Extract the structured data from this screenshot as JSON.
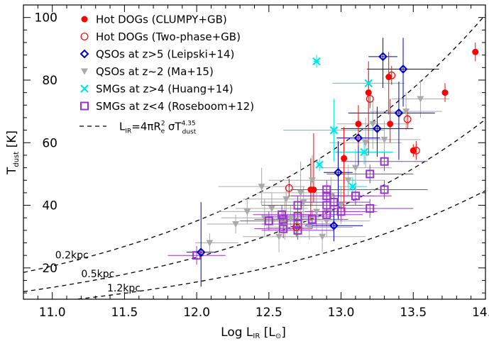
{
  "chart_data": {
    "type": "scatter",
    "xlabel": "Log L",
    "xlabel_sub": "IR",
    "xlabel_unit_open": " [L",
    "xlabel_unit_sub": "⊙",
    "xlabel_unit_close": "]",
    "ylabel": "T",
    "ylabel_sub": "dust",
    "ylabel_unit": " [K]",
    "xlim": [
      10.8,
      14.0
    ],
    "ylim": [
      10,
      104
    ],
    "xticks": [
      "11.0",
      "11.5",
      "12.0",
      "12.5",
      "13.0",
      "13.5",
      "14.0"
    ],
    "xtick_values": [
      11.0,
      11.5,
      12.0,
      12.5,
      13.0,
      13.5,
      14.0
    ],
    "yticks": [
      "20",
      "40",
      "60",
      "80",
      "100"
    ],
    "ytick_values": [
      20,
      40,
      60,
      80,
      100
    ],
    "grid": false,
    "legend_position": "top-left",
    "colors": {
      "hot_dogs": "#ff0000",
      "qso_high": "#0000cc",
      "qso_z2": "#aaaaaa",
      "smg_high": "#00e5e5",
      "smg_low": "#9933cc",
      "curve": "#000000"
    },
    "legend": [
      {
        "label": "Hot DOGs (CLUMPY+GB)",
        "series": "hot_dogs_clumpy"
      },
      {
        "label": "Hot DOGs (Two-phase+GB)",
        "series": "hot_dogs_twophase"
      },
      {
        "label": "QSOs at z>5 (Leipski+14)",
        "series": "qso_high"
      },
      {
        "label": "QSOs at z~2 (Ma+15)",
        "series": "qso_z2"
      },
      {
        "label": "SMGs at z>4 (Huang+14)",
        "series": "smg_high"
      },
      {
        "label": "SMGs at z<4 (Roseboom+12)",
        "series": "smg_low"
      }
    ],
    "curve_legend": {
      "L": "L",
      "L_sub": "IR",
      "eq": "=4πR",
      "R_sup": "2",
      "R_sub": "e",
      "sigma": " σT",
      "T_sup": "4.35",
      "T_sub": "dust"
    },
    "curves": [
      {
        "label": "0.2kpc",
        "T_at_12": 35.0
      },
      {
        "label": "0.5kpc",
        "T_at_12": 23.4
      },
      {
        "label": "1.2kpc",
        "T_at_12": 15.5
      }
    ],
    "series": [
      {
        "name": "Hot DOGs (CLUMPY+GB)",
        "key": "hot_dogs_clumpy",
        "points": [
          {
            "x": 12.79,
            "y": 45,
            "yerr": [
              10,
              10
            ],
            "xerr": [
              0.01,
              0.01
            ]
          },
          {
            "x": 12.81,
            "y": 45,
            "yerr": [
              4,
              18
            ],
            "xerr": [
              0.01,
              0.01
            ]
          },
          {
            "x": 13.02,
            "y": 55,
            "yerr": [
              17,
              10
            ],
            "xerr": [
              0.01,
              0.01
            ]
          },
          {
            "x": 13.12,
            "y": 66,
            "yerr": [
              7,
              6
            ],
            "xerr": [
              0.01,
              0.01
            ]
          },
          {
            "x": 13.19,
            "y": 76,
            "yerr": [
              20,
              10
            ],
            "xerr": [
              0.01,
              0.01
            ]
          },
          {
            "x": 13.33,
            "y": 81,
            "yerr": [
              12,
              8
            ],
            "xerr": [
              0.01,
              0.01
            ]
          },
          {
            "x": 13.34,
            "y": 66,
            "yerr": [
              6,
              8
            ],
            "xerr": [
              0.01,
              0.01
            ]
          },
          {
            "x": 13.5,
            "y": 57.5,
            "yerr": [
              2,
              2
            ],
            "xerr": [
              0.01,
              0.01
            ]
          },
          {
            "x": 13.72,
            "y": 76,
            "yerr": [
              3,
              3
            ],
            "xerr": [
              0.01,
              0.01
            ]
          },
          {
            "x": 13.93,
            "y": 89,
            "yerr": [
              3,
              3
            ],
            "xerr": [
              0.01,
              0.01
            ]
          }
        ]
      },
      {
        "name": "Hot DOGs (Two-phase+GB)",
        "key": "hot_dogs_twophase",
        "points": [
          {
            "x": 12.64,
            "y": 45.5,
            "yerr": [
              3,
              3
            ]
          },
          {
            "x": 12.69,
            "y": 33,
            "yerr": [
              3,
              3
            ]
          },
          {
            "x": 13.2,
            "y": 74,
            "yerr": [
              3,
              3
            ]
          },
          {
            "x": 13.35,
            "y": 81.5,
            "yerr": [
              3,
              3
            ]
          },
          {
            "x": 13.46,
            "y": 67.5,
            "yerr": [
              3,
              3
            ]
          },
          {
            "x": 13.52,
            "y": 57.5,
            "yerr": [
              3,
              3
            ]
          }
        ]
      },
      {
        "name": "QSOs at z>5 (Leipski+14)",
        "key": "qso_high",
        "points": [
          {
            "x": 12.03,
            "y": 25,
            "yerr": [
              11,
              16
            ],
            "xerr": [
              0.1,
              0.1
            ]
          },
          {
            "x": 12.95,
            "y": 33.5,
            "yerr": [
              5,
              5
            ],
            "xerr": [
              0.2,
              0.2
            ]
          },
          {
            "x": 12.98,
            "y": 50.5,
            "yerr": [
              15,
              10
            ],
            "xerr": [
              0.1,
              0.1
            ]
          },
          {
            "x": 13.12,
            "y": 61.5,
            "yerr": [
              9,
              7
            ],
            "xerr": [
              0.15,
              0.15
            ]
          },
          {
            "x": 13.25,
            "y": 64.5,
            "yerr": [
              9,
              7
            ],
            "xerr": [
              0.25,
              0.25
            ]
          },
          {
            "x": 13.29,
            "y": 87.5,
            "yerr": [
              10,
              6
            ],
            "xerr": [
              0.1,
              0.1
            ]
          },
          {
            "x": 13.4,
            "y": 69.5,
            "yerr": [
              15,
              10
            ],
            "xerr": [
              0.35,
              0.25
            ]
          },
          {
            "x": 13.43,
            "y": 83.5,
            "yerr": [
              12,
              10
            ],
            "xerr": [
              0.25,
              0.25
            ]
          }
        ]
      },
      {
        "name": "QSOs at z~2 (Ma+15)",
        "key": "qso_z2",
        "points": [
          {
            "x": 12.09,
            "y": 28,
            "yerr": [
              3,
              3
            ],
            "xerr": [
              0.1,
              0.2
            ]
          },
          {
            "x": 12.27,
            "y": 34,
            "yerr": [
              3,
              3
            ],
            "xerr": [
              0.2,
              0.2
            ]
          },
          {
            "x": 12.35,
            "y": 38,
            "yerr": [
              4,
              4
            ],
            "xerr": [
              0.2,
              0.2
            ]
          },
          {
            "x": 12.47,
            "y": 36,
            "yerr": [
              6,
              6
            ],
            "xerr": [
              0.3,
              0.3
            ]
          },
          {
            "x": 12.52,
            "y": 39,
            "yerr": [
              5,
              5
            ],
            "xerr": [
              0.25,
              0.25
            ]
          },
          {
            "x": 12.57,
            "y": 30,
            "yerr": [
              5,
              5
            ],
            "xerr": [
              0.25,
              0.25
            ]
          },
          {
            "x": 12.61,
            "y": 34,
            "yerr": [
              5,
              8
            ],
            "xerr": [
              0.25,
              0.3
            ]
          },
          {
            "x": 12.65,
            "y": 36,
            "yerr": [
              4,
              4
            ],
            "xerr": [
              0.2,
              0.2
            ]
          },
          {
            "x": 12.72,
            "y": 44,
            "yerr": [
              8,
              10
            ],
            "xerr": [
              0.3,
              0.3
            ]
          },
          {
            "x": 12.74,
            "y": 41,
            "yerr": [
              5,
              5
            ],
            "xerr": [
              0.3,
              0.3
            ]
          },
          {
            "x": 12.78,
            "y": 33,
            "yerr": [
              4,
              4
            ],
            "xerr": [
              0.3,
              0.3
            ]
          },
          {
            "x": 12.8,
            "y": 48,
            "yerr": [
              8,
              8
            ],
            "xerr": [
              0.3,
              0.3
            ]
          },
          {
            "x": 12.83,
            "y": 38,
            "yerr": [
              6,
              6
            ],
            "xerr": [
              0.3,
              0.3
            ]
          },
          {
            "x": 12.87,
            "y": 30,
            "yerr": [
              5,
              5
            ],
            "xerr": [
              0.3,
              0.3
            ]
          },
          {
            "x": 12.9,
            "y": 35,
            "yerr": [
              5,
              5
            ],
            "xerr": [
              0.3,
              0.3
            ]
          },
          {
            "x": 12.93,
            "y": 43,
            "yerr": [
              6,
              6
            ],
            "xerr": [
              0.3,
              0.3
            ]
          },
          {
            "x": 13.0,
            "y": 40,
            "yerr": [
              6,
              6
            ],
            "xerr": [
              0.25,
              0.25
            ]
          },
          {
            "x": 13.05,
            "y": 48,
            "yerr": [
              5,
              5
            ],
            "xerr": [
              0.25,
              0.25
            ]
          },
          {
            "x": 13.1,
            "y": 52,
            "yerr": [
              6,
              6
            ],
            "xerr": [
              0.25,
              0.25
            ]
          },
          {
            "x": 13.17,
            "y": 60,
            "yerr": [
              8,
              8
            ],
            "xerr": [
              0.25,
              0.25
            ]
          },
          {
            "x": 13.22,
            "y": 66,
            "yerr": [
              8,
              8
            ],
            "xerr": [
              0.25,
              0.25
            ]
          },
          {
            "x": 13.3,
            "y": 61,
            "yerr": [
              6,
              6
            ],
            "xerr": [
              0.25,
              0.25
            ]
          },
          {
            "x": 13.45,
            "y": 70,
            "yerr": [
              6,
              6
            ],
            "xerr": [
              0.25,
              0.25
            ]
          },
          {
            "x": 13.55,
            "y": 74,
            "yerr": [
              6,
              6
            ],
            "xerr": [
              0.2,
              0.2
            ]
          },
          {
            "x": 12.45,
            "y": 46,
            "yerr": [
              6,
              6
            ],
            "xerr": [
              0.3,
              0.3
            ]
          },
          {
            "x": 12.62,
            "y": 42,
            "yerr": [
              4,
              4
            ],
            "xerr": [
              0.3,
              0.3
            ]
          }
        ]
      },
      {
        "name": "SMGs at z>4 (Huang+14)",
        "key": "smg_high",
        "points": [
          {
            "x": 12.83,
            "y": 86,
            "yerr": [
              2,
              2
            ],
            "xerr": [
              0.02,
              0.02
            ]
          },
          {
            "x": 12.85,
            "y": 53,
            "yerr": [
              2,
              2
            ],
            "xerr": [
              0.02,
              0.02
            ]
          },
          {
            "x": 12.95,
            "y": 64,
            "yerr": [
              10,
              10
            ],
            "xerr": [
              0.35,
              0.35
            ]
          },
          {
            "x": 13.08,
            "y": 46,
            "yerr": [
              3,
              3
            ],
            "xerr": [
              0.1,
              0.1
            ]
          },
          {
            "x": 13.16,
            "y": 57,
            "yerr": [
              4,
              4
            ],
            "xerr": [
              0.2,
              0.2
            ]
          },
          {
            "x": 13.19,
            "y": 79,
            "yerr": [
              4,
              4
            ],
            "xerr": [
              0.25,
              0.25
            ]
          }
        ]
      },
      {
        "name": "SMGs at z<4 (Roseboom+12)",
        "key": "smg_low",
        "points": [
          {
            "x": 12.0,
            "y": 24,
            "yerr": [
              3,
              3
            ],
            "xerr": [
              0.2,
              0.2
            ]
          },
          {
            "x": 12.5,
            "y": 35,
            "yerr": [
              3,
              3
            ],
            "xerr": [
              0.2,
              0.2
            ]
          },
          {
            "x": 12.59,
            "y": 37,
            "yerr": [
              3,
              3
            ],
            "xerr": [
              0.2,
              0.2
            ]
          },
          {
            "x": 12.6,
            "y": 32.5,
            "yerr": [
              3,
              3
            ],
            "xerr": [
              0.2,
              0.2
            ]
          },
          {
            "x": 12.6,
            "y": 35.5,
            "yerr": [
              3,
              3
            ],
            "xerr": [
              0.2,
              0.2
            ]
          },
          {
            "x": 12.7,
            "y": 40,
            "yerr": [
              3,
              3
            ],
            "xerr": [
              0.25,
              0.25
            ]
          },
          {
            "x": 12.7,
            "y": 36.5,
            "yerr": [
              3,
              3
            ],
            "xerr": [
              0.25,
              0.25
            ]
          },
          {
            "x": 12.7,
            "y": 34,
            "yerr": [
              3,
              3
            ],
            "xerr": [
              0.25,
              0.25
            ]
          },
          {
            "x": 12.7,
            "y": 32,
            "yerr": [
              3,
              3
            ],
            "xerr": [
              0.25,
              0.25
            ]
          },
          {
            "x": 12.8,
            "y": 35.5,
            "yerr": [
              3,
              3
            ],
            "xerr": [
              0.25,
              0.25
            ]
          },
          {
            "x": 12.9,
            "y": 37,
            "yerr": [
              3,
              3
            ],
            "xerr": [
              0.25,
              0.25
            ]
          },
          {
            "x": 12.9,
            "y": 40,
            "yerr": [
              3,
              3
            ],
            "xerr": [
              0.25,
              0.25
            ]
          },
          {
            "x": 12.9,
            "y": 43,
            "yerr": [
              3,
              3
            ],
            "xerr": [
              0.25,
              0.25
            ]
          },
          {
            "x": 12.9,
            "y": 45,
            "yerr": [
              3,
              3
            ],
            "xerr": [
              0.25,
              0.25
            ]
          },
          {
            "x": 12.95,
            "y": 41,
            "yerr": [
              3,
              3
            ],
            "xerr": [
              0.25,
              0.25
            ]
          },
          {
            "x": 13.0,
            "y": 38,
            "yerr": [
              3,
              3
            ],
            "xerr": [
              0.25,
              0.25
            ]
          },
          {
            "x": 13.1,
            "y": 43,
            "yerr": [
              3,
              3
            ],
            "xerr": [
              0.25,
              0.25
            ]
          },
          {
            "x": 13.2,
            "y": 39,
            "yerr": [
              3,
              3
            ],
            "xerr": [
              0.3,
              0.3
            ]
          },
          {
            "x": 13.2,
            "y": 50,
            "yerr": [
              3,
              3
            ],
            "xerr": [
              0.3,
              0.3
            ]
          },
          {
            "x": 13.3,
            "y": 45,
            "yerr": [
              3,
              3
            ],
            "xerr": [
              0.3,
              0.3
            ]
          },
          {
            "x": 13.3,
            "y": 54,
            "yerr": [
              3,
              3
            ],
            "xerr": [
              0.3,
              0.3
            ]
          }
        ]
      }
    ]
  }
}
